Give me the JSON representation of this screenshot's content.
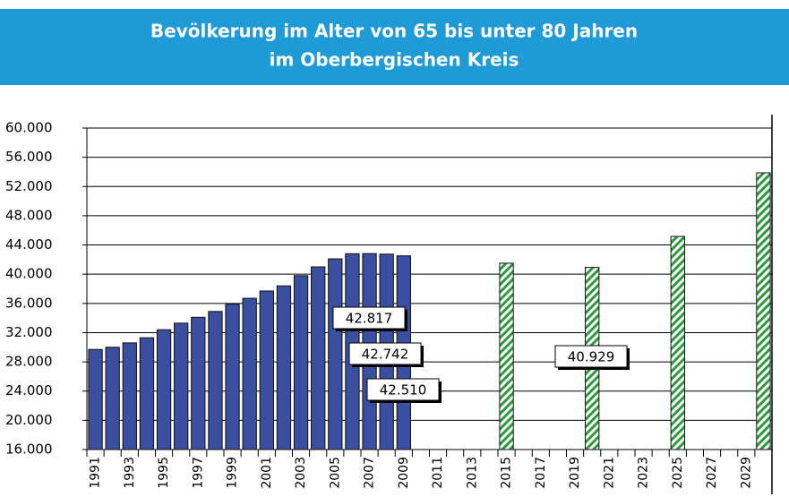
{
  "chart_data": {
    "type": "bar",
    "title": [
      "Bevölkerung im Alter von 65 bis unter 80 Jahren",
      "im Oberbergischen Kreis"
    ],
    "categories": [
      "1991",
      null,
      "1993",
      null,
      "1995",
      null,
      "1997",
      null,
      "1999",
      null,
      "2001",
      null,
      "2003",
      null,
      "2005",
      null,
      "2007",
      null,
      "2009",
      null,
      "2011",
      null,
      "2013",
      null,
      "2015",
      null,
      "2017",
      null,
      "2019",
      null,
      "2021",
      null,
      "2023",
      null,
      "2025",
      null,
      "2027",
      null,
      "2029",
      null
    ],
    "series": [
      {
        "color": "#3a4f9f",
        "values": [
          29700,
          30000,
          30600,
          31300,
          32400,
          33300,
          34100,
          34900,
          35900,
          36700,
          37700,
          38400,
          39800,
          41000,
          42100,
          42800,
          42817,
          42742,
          42510,
          null,
          null,
          null,
          null,
          null,
          null,
          null,
          null,
          null,
          null,
          null,
          null,
          null,
          null,
          null,
          null,
          null,
          null,
          null,
          null,
          null
        ],
        "value_labels": [
          null,
          null,
          null,
          null,
          null,
          null,
          null,
          null,
          null,
          null,
          null,
          null,
          null,
          null,
          null,
          null,
          "42.817",
          "42.742",
          "42.510",
          null,
          null,
          null,
          null,
          null,
          null,
          null,
          null,
          null,
          null,
          null,
          null,
          null,
          null,
          null,
          null,
          null,
          null,
          null,
          null,
          null
        ]
      },
      {
        "color": "#2e9a3e",
        "hatch": true,
        "values": [
          null,
          null,
          null,
          null,
          null,
          null,
          null,
          null,
          null,
          null,
          null,
          null,
          null,
          null,
          null,
          null,
          null,
          null,
          null,
          null,
          null,
          null,
          null,
          null,
          41500,
          null,
          null,
          null,
          null,
          40929,
          null,
          null,
          null,
          null,
          45170,
          null,
          null,
          null,
          null,
          53870
        ],
        "value_labels": [
          null,
          null,
          null,
          null,
          null,
          null,
          null,
          null,
          null,
          null,
          null,
          null,
          null,
          null,
          null,
          null,
          null,
          null,
          null,
          null,
          null,
          null,
          null,
          null,
          null,
          null,
          null,
          null,
          null,
          "40.929",
          null,
          null,
          null,
          null,
          null,
          null,
          null,
          null,
          null,
          null
        ]
      }
    ],
    "ylim": [
      16000,
      60000
    ],
    "yticks": [
      {
        "value": 16000,
        "label": "16.000"
      },
      {
        "value": 20000,
        "label": "20.000"
      },
      {
        "value": 24000,
        "label": "24.000"
      },
      {
        "value": 28000,
        "label": "28.000"
      },
      {
        "value": 32000,
        "label": "32.000"
      },
      {
        "value": 36000,
        "label": "36.000"
      },
      {
        "value": 40000,
        "label": "40.000"
      },
      {
        "value": 44000,
        "label": "44.000"
      },
      {
        "value": 48000,
        "label": "48.000"
      },
      {
        "value": 52000,
        "label": "52.000"
      },
      {
        "value": 56000,
        "label": "56.000"
      },
      {
        "value": 60000,
        "label": "60.000"
      }
    ],
    "grid": true
  }
}
